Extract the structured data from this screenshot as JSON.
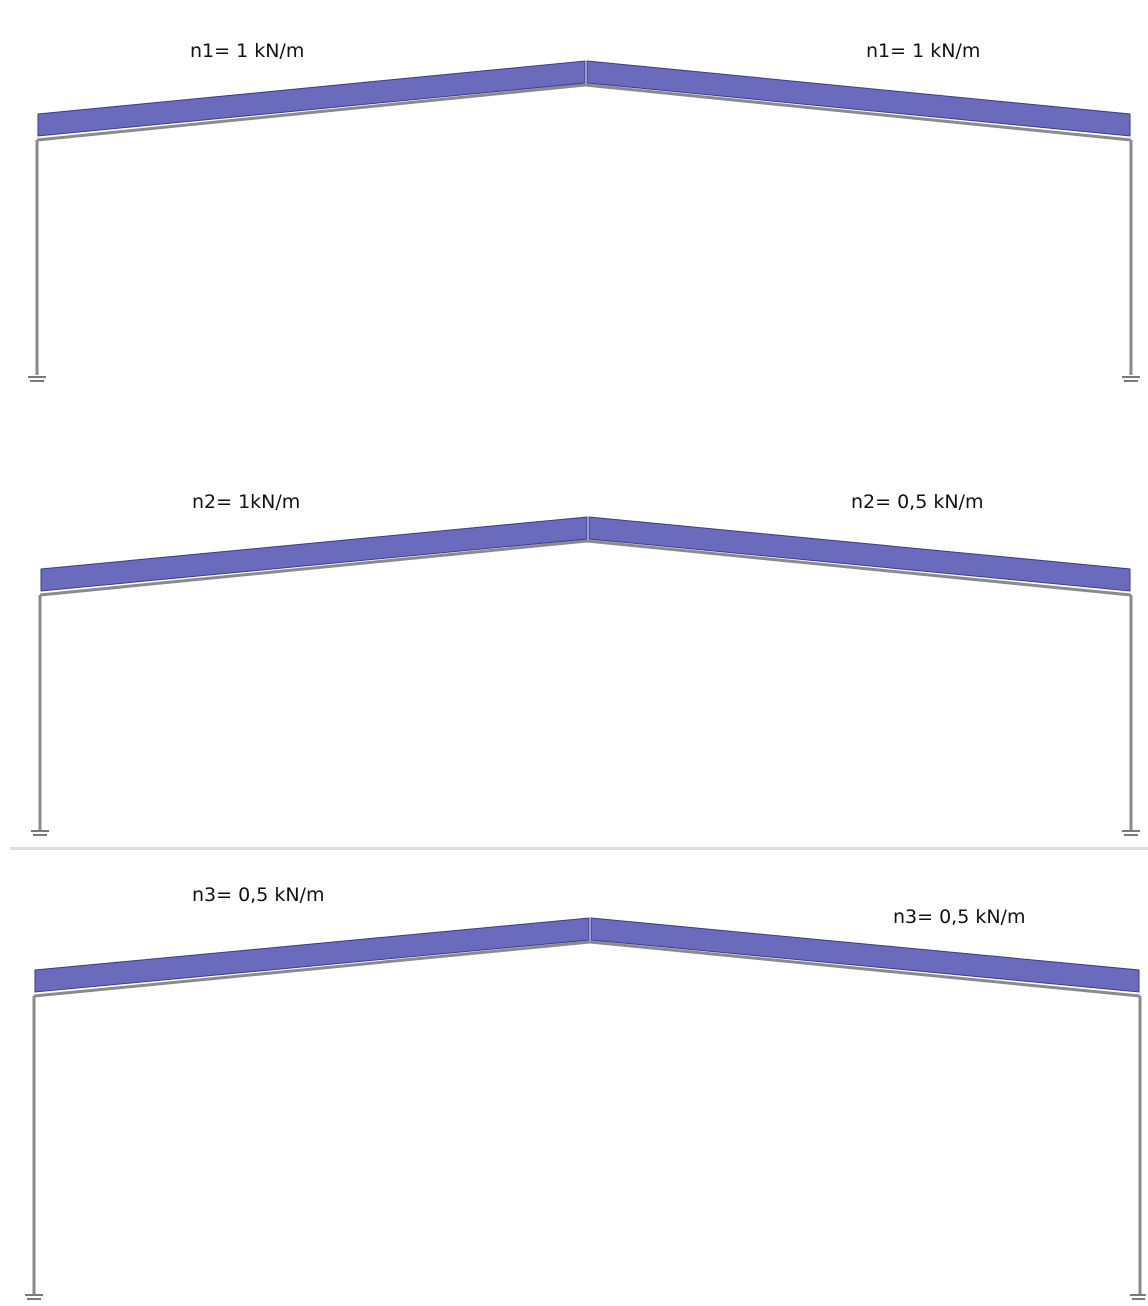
{
  "colors": {
    "load_fill": "#6b6bbd",
    "load_edge": "#3a3a8f",
    "member": "#8a8a8a",
    "support": "#7a7a7a"
  },
  "frames": [
    {
      "left_label": "n1= 1 kN/m",
      "right_label": "n1= 1 kN/m"
    },
    {
      "left_label": "n2= 1kN/m",
      "right_label": "n2= 0,5 kN/m"
    },
    {
      "left_label": "n3= 0,5 kN/m",
      "right_label": "n3= 0,5 kN/m"
    }
  ]
}
